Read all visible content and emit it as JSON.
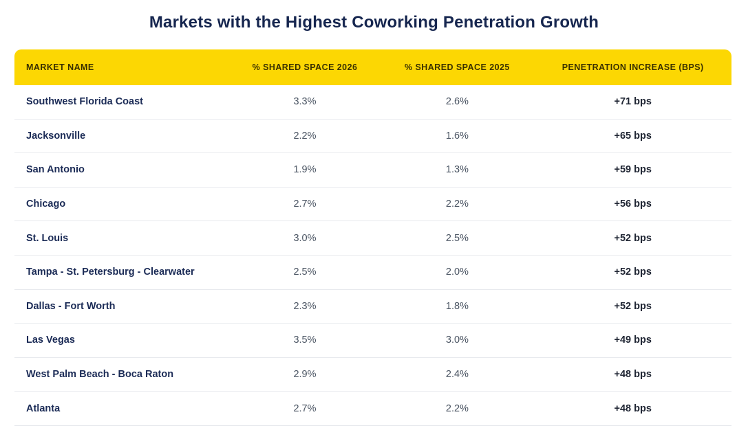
{
  "title": "Markets with the Highest Coworking Penetration Growth",
  "colors": {
    "page_bg": "#FFFFFF",
    "header_bg": "#FCD703",
    "header_text": "#3A3100",
    "title_text": "#16264F",
    "market_text": "#1B2B56",
    "value_text": "#4B5563",
    "bps_text": "#1F2533",
    "row_divider": "#E8EAEE"
  },
  "table": {
    "columns": [
      "MARKET NAME",
      "% SHARED SPACE 2026",
      "% SHARED SPACE 2025",
      "PENETRATION INCREASE (BPS)"
    ],
    "rows": [
      {
        "market": "Southwest Florida Coast",
        "space_2026": "3.3%",
        "space_2025": "2.6%",
        "increase": "+71 bps"
      },
      {
        "market": "Jacksonville",
        "space_2026": "2.2%",
        "space_2025": "1.6%",
        "increase": "+65 bps"
      },
      {
        "market": "San Antonio",
        "space_2026": "1.9%",
        "space_2025": "1.3%",
        "increase": "+59 bps"
      },
      {
        "market": "Chicago",
        "space_2026": "2.7%",
        "space_2025": "2.2%",
        "increase": "+56 bps"
      },
      {
        "market": "St. Louis",
        "space_2026": "3.0%",
        "space_2025": "2.5%",
        "increase": "+52 bps"
      },
      {
        "market": "Tampa - St. Petersburg - Clearwater",
        "space_2026": "2.5%",
        "space_2025": "2.0%",
        "increase": "+52 bps"
      },
      {
        "market": "Dallas - Fort Worth",
        "space_2026": "2.3%",
        "space_2025": "1.8%",
        "increase": "+52 bps"
      },
      {
        "market": "Las Vegas",
        "space_2026": "3.5%",
        "space_2025": "3.0%",
        "increase": "+49 bps"
      },
      {
        "market": "West Palm Beach - Boca Raton",
        "space_2026": "2.9%",
        "space_2025": "2.4%",
        "increase": "+48 bps"
      },
      {
        "market": "Atlanta",
        "space_2026": "2.7%",
        "space_2025": "2.2%",
        "increase": "+48 bps"
      }
    ]
  },
  "chart_data": {
    "type": "table",
    "title": "Markets with the Highest Coworking Penetration Growth",
    "columns": [
      "Market Name",
      "% Shared Space 2026",
      "% Shared Space 2025",
      "Penetration Increase (bps)"
    ],
    "rows": [
      [
        "Southwest Florida Coast",
        3.3,
        2.6,
        71
      ],
      [
        "Jacksonville",
        2.2,
        1.6,
        65
      ],
      [
        "San Antonio",
        1.9,
        1.3,
        59
      ],
      [
        "Chicago",
        2.7,
        2.2,
        56
      ],
      [
        "St. Louis",
        3.0,
        2.5,
        52
      ],
      [
        "Tampa - St. Petersburg - Clearwater",
        2.5,
        2.0,
        52
      ],
      [
        "Dallas - Fort Worth",
        2.3,
        1.8,
        52
      ],
      [
        "Las Vegas",
        3.5,
        3.0,
        49
      ],
      [
        "West Palm Beach - Boca Raton",
        2.9,
        2.4,
        48
      ],
      [
        "Atlanta",
        2.7,
        2.2,
        48
      ]
    ]
  }
}
